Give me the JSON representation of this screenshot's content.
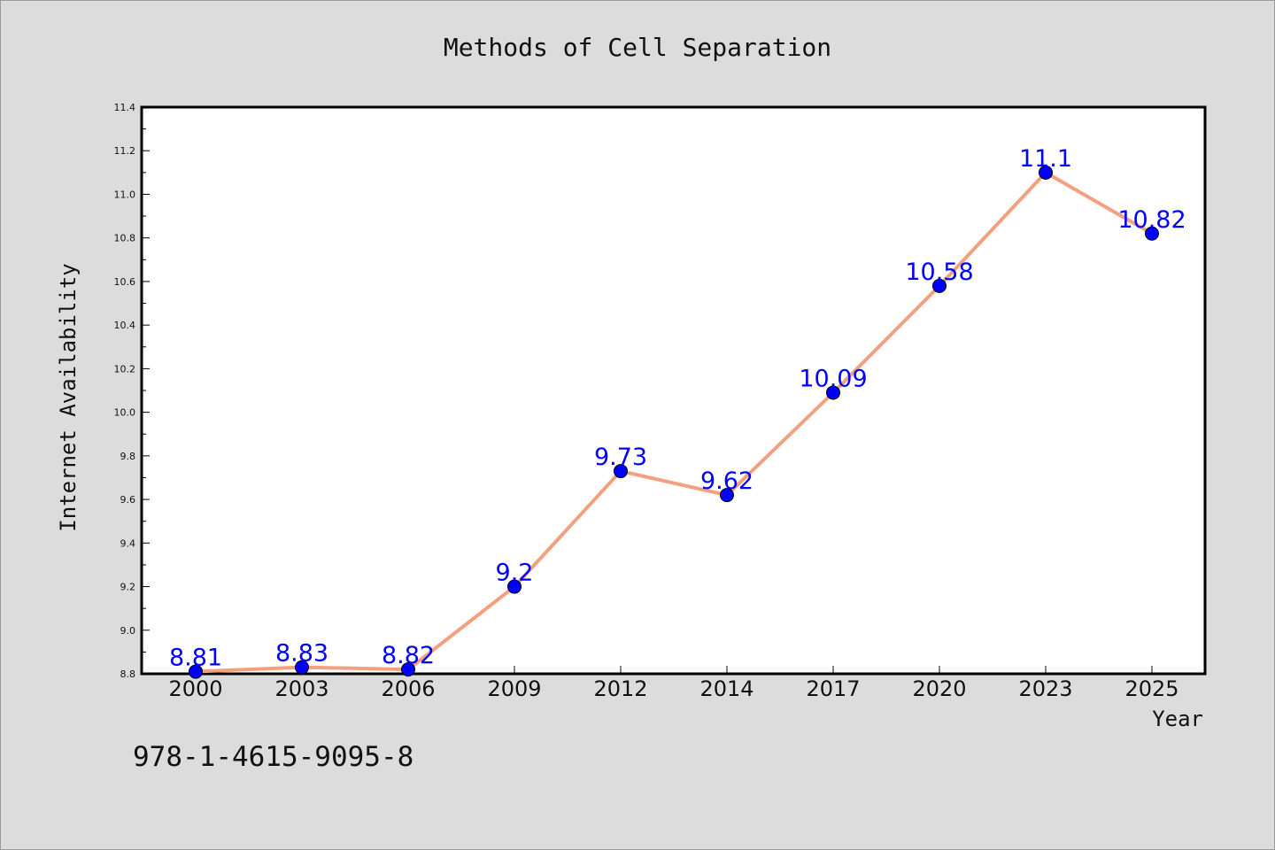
{
  "chart_data": {
    "type": "line",
    "title": "Methods of Cell Separation",
    "xlabel": "Year",
    "ylabel": "Internet Availability",
    "categories": [
      "2000",
      "2003",
      "2006",
      "2009",
      "2012",
      "2014",
      "2017",
      "2020",
      "2023",
      "2025"
    ],
    "series": [
      {
        "values": [
          8.81,
          8.83,
          8.82,
          9.2,
          9.73,
          9.62,
          10.09,
          10.58,
          11.1,
          10.82
        ],
        "labels": [
          "8.81",
          "8.83",
          "8.82",
          "9.2",
          "9.73",
          "9.62",
          "10.09",
          "10.58",
          "11.1",
          "10.82"
        ],
        "line_color": "#f4a07f",
        "marker_color": "#0000ff"
      }
    ],
    "ylim": [
      8.8,
      11.4
    ],
    "yticks": [
      "8.8",
      "9.0",
      "9.2",
      "9.4",
      "9.6",
      "9.8",
      "10.0",
      "10.2",
      "10.4",
      "10.6",
      "10.8",
      "11.0",
      "11.2",
      "11.4"
    ],
    "grid": false,
    "legend": "none"
  },
  "footnote": "978-1-4615-9095-8",
  "colors": {
    "background": "#dcdcdc",
    "plot_background": "#ffffff",
    "line": "#f4a07f",
    "marker": "#0000ff",
    "data_label": "#0000ff"
  }
}
